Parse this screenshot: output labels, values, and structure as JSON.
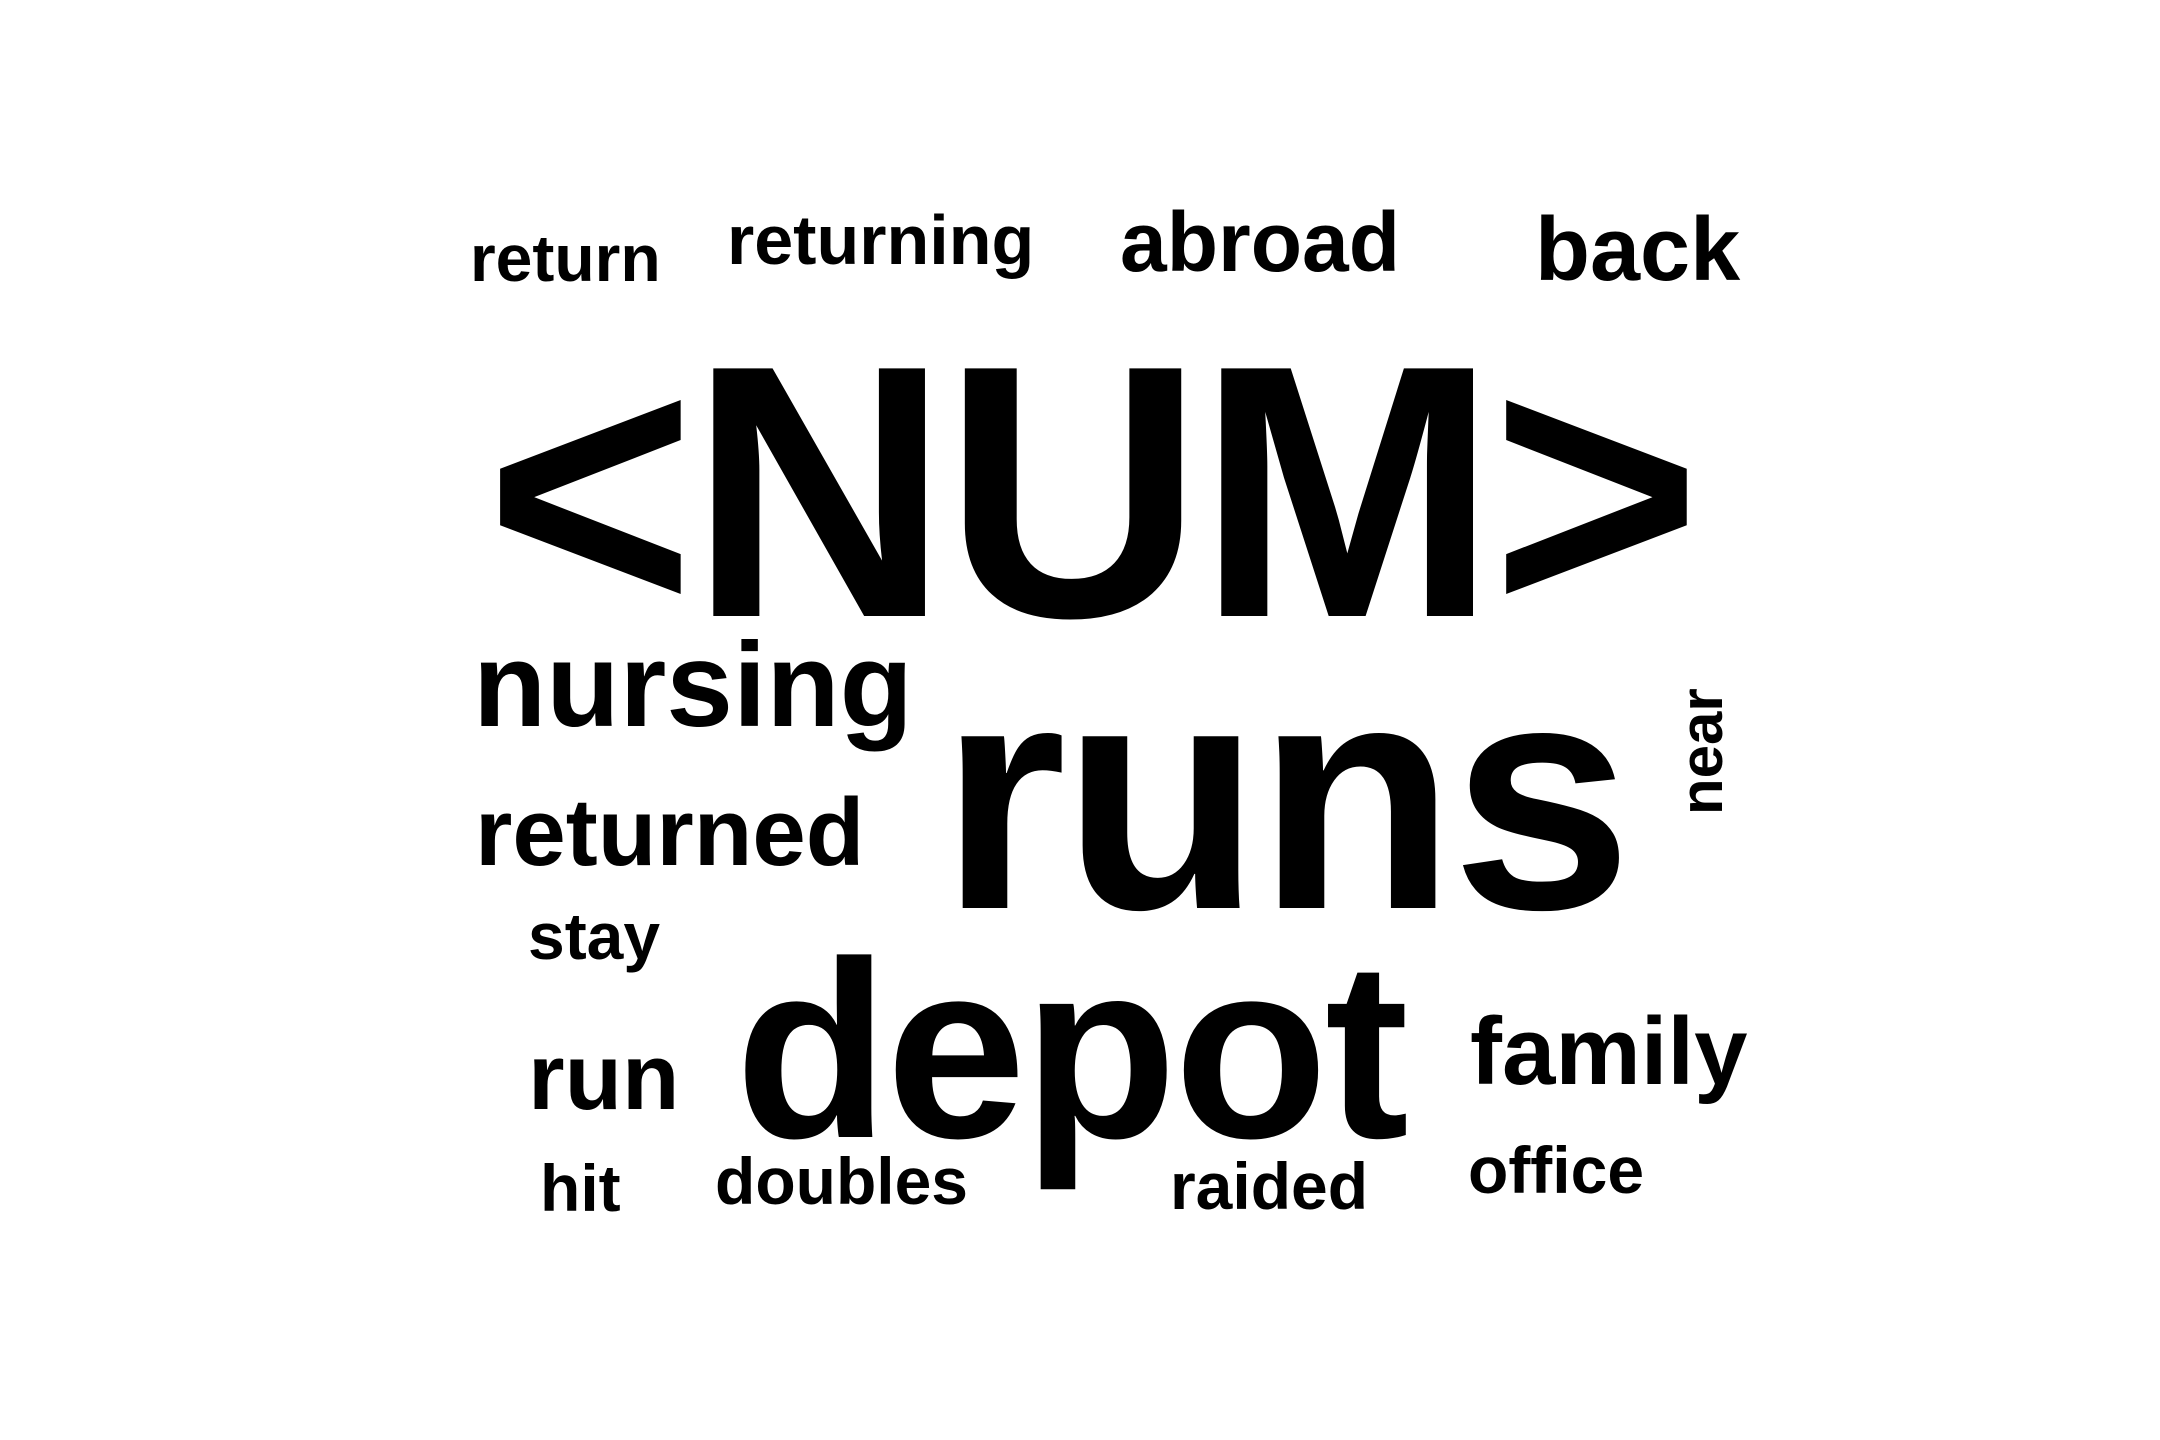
{
  "word_cloud": {
    "words": {
      "num": "<NUM>",
      "runs": "runs",
      "depot": "depot",
      "nursing": "nursing",
      "returned": "returned",
      "family": "family",
      "back": "back",
      "abroad": "abroad",
      "run": "run",
      "returning": "returning",
      "return": "return",
      "stay": "stay",
      "doubles": "doubles",
      "raided": "raided",
      "office": "office",
      "hit": "hit",
      "near": "near"
    },
    "text_color": "#000000",
    "background_color": "#ffffff"
  }
}
